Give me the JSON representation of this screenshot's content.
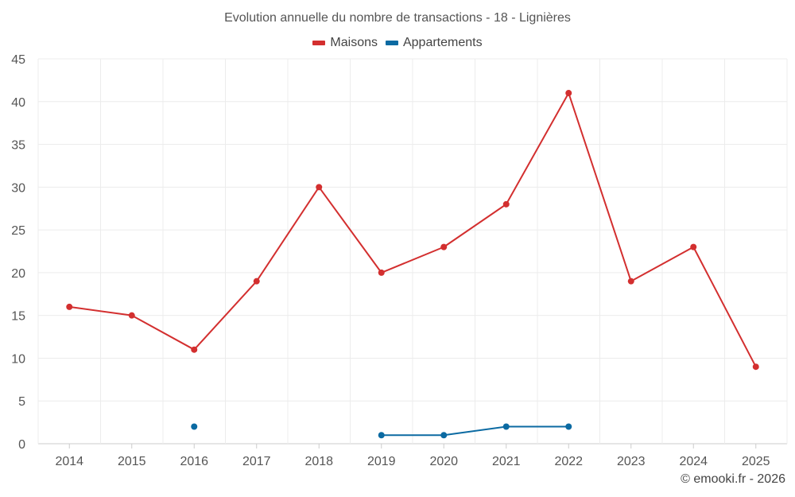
{
  "chart_data": {
    "type": "line",
    "title": "Evolution annuelle du nombre de transactions - 18 - Lignières",
    "categories": [
      "2014",
      "2015",
      "2016",
      "2017",
      "2018",
      "2019",
      "2020",
      "2021",
      "2022",
      "2023",
      "2024",
      "2025"
    ],
    "ylim": [
      0,
      45
    ],
    "yticks": [
      0,
      5,
      10,
      15,
      20,
      25,
      30,
      35,
      40,
      45
    ],
    "grid": true,
    "legend_position": "top-center",
    "series": [
      {
        "name": "Maisons",
        "color": "#d32f2f",
        "values": [
          16,
          15,
          11,
          19,
          30,
          20,
          23,
          28,
          41,
          19,
          23,
          9
        ]
      },
      {
        "name": "Appartements",
        "color": "#0b6aa2",
        "values": [
          null,
          null,
          2,
          null,
          null,
          1,
          1,
          2,
          2,
          null,
          null,
          null
        ]
      }
    ]
  },
  "credit": "© emooki.fr - 2026"
}
